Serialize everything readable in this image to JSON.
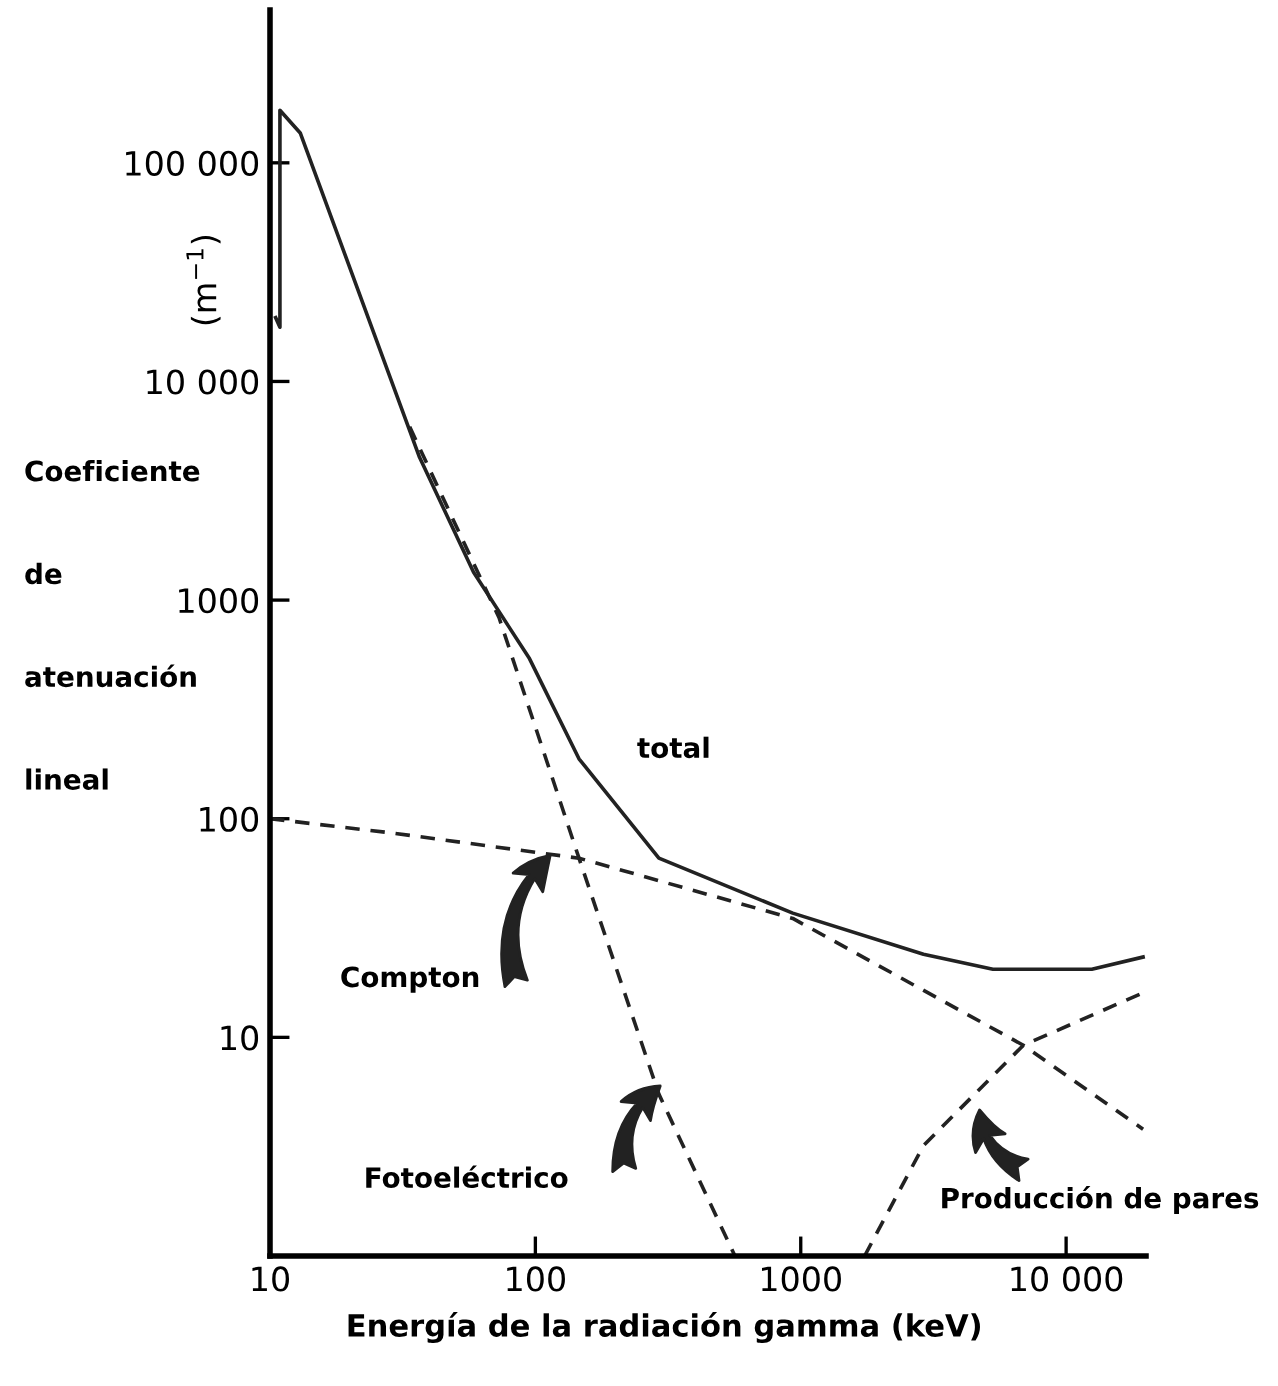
{
  "chart_data": {
    "type": "line",
    "xlabel": "Energía de la radiación gamma (keV)",
    "ylabel": "(m$^{−1}$)",
    "log": "xy",
    "xlim": [
      10,
      20000
    ],
    "ylim": [
      1,
      500000
    ],
    "xticks": [
      10,
      100,
      1000,
      {
        "value": 10000,
        "label": "10 000"
      }
    ],
    "yticks": [
      10,
      100,
      1000,
      {
        "value": 10000,
        "label": "10 000"
      },
      {
        "value": 100000,
        "label": "100 000"
      }
    ],
    "grid": false,
    "legend": false,
    "marker": "none",
    "series": [
      {
        "color": "#222222",
        "line_style": "solid",
        "x": [
          10.5,
          10.9,
          10.9,
          13,
          36.6,
          58.5,
          95,
          146,
          292,
          933,
          2900,
          5300,
          12500,
          19500
        ],
        "values": [
          19600,
          17700,
          174000,
          137000,
          4500,
          1340,
          540,
          188,
          66,
          37,
          24,
          20.5,
          20.5,
          23.3
        ]
      },
      {
        "color": "#222222",
        "line_style": "dashed",
        "x": [
          33.6,
          73,
          146,
          292,
          565
        ],
        "values": [
          6200,
          830,
          66,
          5.5,
          1
        ]
      },
      {
        "color": "#222222",
        "line_style": "dashed",
        "x": [
          10,
          29,
          146,
          933,
          6900,
          19500
        ],
        "values": [
          100,
          86,
          66,
          35,
          9.2,
          3.8
        ]
      },
      {
        "color": "#222222",
        "line_style": "dashed",
        "x": [
          1740,
          2900,
          6900,
          19500
        ],
        "values": [
          1,
          3.2,
          9.2,
          16
        ]
      }
    ],
    "annotations": [
      "Coeficiente de atenuación lineal",
      "total",
      "Compton",
      "Fotoeléctrico",
      "Producción de pares"
    ]
  }
}
